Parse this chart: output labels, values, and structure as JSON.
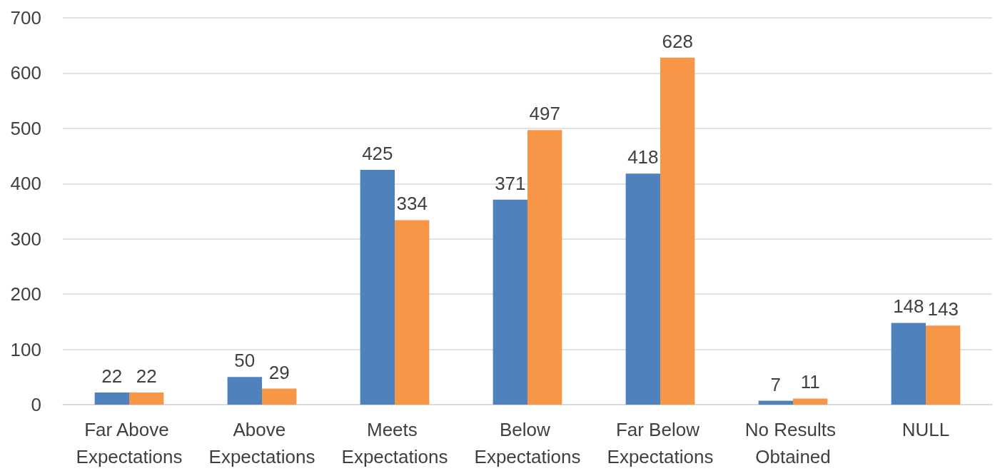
{
  "chart_data": {
    "type": "bar",
    "categories": [
      "Far Above Expectations",
      "Above Expectations",
      "Meets Expectations",
      "Below Expectations",
      "Far Below Expectations",
      "No Results Obtained",
      "NULL"
    ],
    "series": [
      {
        "color": "#4f81bd",
        "values": [
          22,
          50,
          425,
          371,
          418,
          7,
          148
        ]
      },
      {
        "color": "#f79646",
        "values": [
          22,
          29,
          334,
          497,
          628,
          11,
          143
        ]
      }
    ],
    "ylim": [
      0,
      700
    ],
    "yticks": [
      0,
      100,
      200,
      300,
      400,
      500,
      600,
      700
    ],
    "grid": "y",
    "data_labels": true
  }
}
